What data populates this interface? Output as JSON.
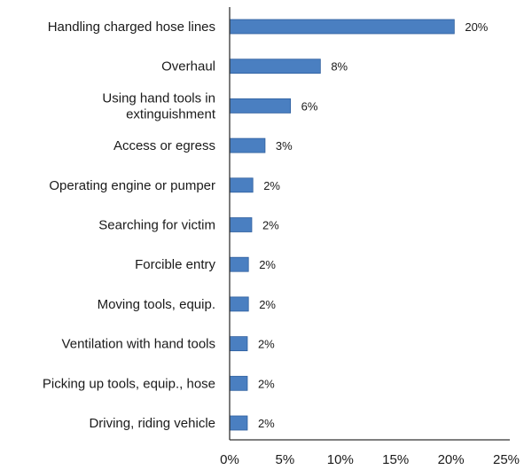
{
  "chart_data": {
    "type": "bar",
    "orientation": "horizontal",
    "categories": [
      [
        "Handling charged hose lines"
      ],
      [
        "Overhaul"
      ],
      [
        "Using hand tools in",
        "extinguishment"
      ],
      [
        "Access or egress"
      ],
      [
        "Operating engine or pumper"
      ],
      [
        "Searching for victim"
      ],
      [
        "Forcible entry"
      ],
      [
        "Moving tools, equip."
      ],
      [
        "Ventilation with hand tools"
      ],
      [
        "Picking up tools, equip., hose"
      ],
      [
        "Driving, riding vehicle"
      ]
    ],
    "values": [
      20.3,
      8.2,
      5.5,
      3.2,
      2.1,
      2.0,
      1.7,
      1.7,
      1.6,
      1.6,
      1.6
    ],
    "value_labels": [
      "20%",
      "8%",
      "6%",
      "3%",
      "2%",
      "2%",
      "2%",
      "2%",
      "2%",
      "2%",
      "2%"
    ],
    "xlim": [
      0,
      25
    ],
    "x_ticks": [
      0,
      5,
      10,
      15,
      20,
      25
    ],
    "x_tick_labels": [
      "0%",
      "5%",
      "10%",
      "15%",
      "20%",
      "25%"
    ],
    "bar_color": "#4a7fc1",
    "bar_edge_color": "#2f5f9e",
    "grid": false,
    "legend": "none"
  }
}
